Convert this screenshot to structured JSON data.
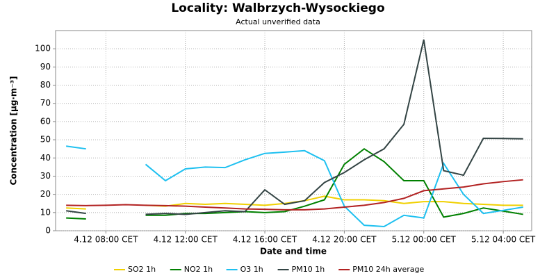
{
  "chart_data": {
    "type": "line",
    "title": "Locality: Walbrzych-Wysockiego",
    "subtitle": "Actual unverified data",
    "y_label": "Concentration [µg·m⁻³]",
    "x_label": "Date and time",
    "x": [
      6,
      7,
      8,
      9,
      10,
      11,
      12,
      13,
      14,
      15,
      16,
      17,
      18,
      19,
      20,
      21,
      22,
      23,
      24,
      25,
      26,
      27,
      28,
      29
    ],
    "xlim": [
      5.47,
      29.43
    ],
    "xticks": [
      {
        "value": 8,
        "label": "4.12 08:00 CET"
      },
      {
        "value": 12,
        "label": "4.12 12:00 CET"
      },
      {
        "value": 16,
        "label": "4.12 16:00 CET"
      },
      {
        "value": 20,
        "label": "4.12 20:00 CET"
      },
      {
        "value": 24,
        "label": "5.12 00:00 CET"
      },
      {
        "value": 28,
        "label": "5.12 04:00 CET"
      }
    ],
    "ylim": [
      0,
      110
    ],
    "yticks": [
      0,
      10,
      20,
      30,
      40,
      50,
      60,
      70,
      80,
      90,
      100
    ],
    "grid": true,
    "legend": "bottom",
    "series": [
      {
        "name": "SO2 1h",
        "color": "#f0d000",
        "values": [
          12.5,
          12,
          null,
          null,
          14,
          13.5,
          15,
          14.5,
          15,
          14.5,
          14,
          15,
          16.5,
          19,
          17,
          17,
          16.5,
          15,
          16,
          16,
          15,
          14.5,
          14,
          14
        ]
      },
      {
        "name": "NO2 1h",
        "color": "#008000",
        "values": [
          7,
          6.5,
          null,
          null,
          8.5,
          8.5,
          9.5,
          9.5,
          10,
          10.5,
          10,
          10.5,
          13.5,
          17,
          36.5,
          45,
          38,
          27.5,
          27.5,
          7.5,
          9.5,
          12.5,
          10.8,
          9
        ]
      },
      {
        "name": "O3 1h",
        "color": "#1ec0f0",
        "values": [
          46.5,
          45,
          null,
          null,
          36.5,
          27.5,
          34,
          35,
          34.7,
          39,
          42.5,
          43.2,
          44,
          38.5,
          13.5,
          3,
          2.3,
          8.5,
          7,
          37,
          20,
          9.5,
          11.2,
          13
        ]
      },
      {
        "name": "PM10 1h",
        "color": "#334444",
        "values": [
          11,
          9.5,
          null,
          null,
          9,
          9.5,
          9,
          10,
          11,
          10.5,
          22.5,
          14.5,
          16.5,
          26.5,
          32,
          39,
          45,
          58.5,
          105,
          33,
          30.5,
          50.8,
          50.7,
          50.5
        ]
      },
      {
        "name": "PM10 24h average",
        "color": "#b22222",
        "values": [
          14,
          13.8,
          14,
          14.3,
          14,
          13.8,
          13.5,
          13,
          12.5,
          12,
          11.8,
          11.5,
          11.5,
          12,
          13,
          14,
          15.5,
          17.8,
          22,
          23,
          24,
          25.8,
          27,
          28
        ]
      }
    ]
  }
}
